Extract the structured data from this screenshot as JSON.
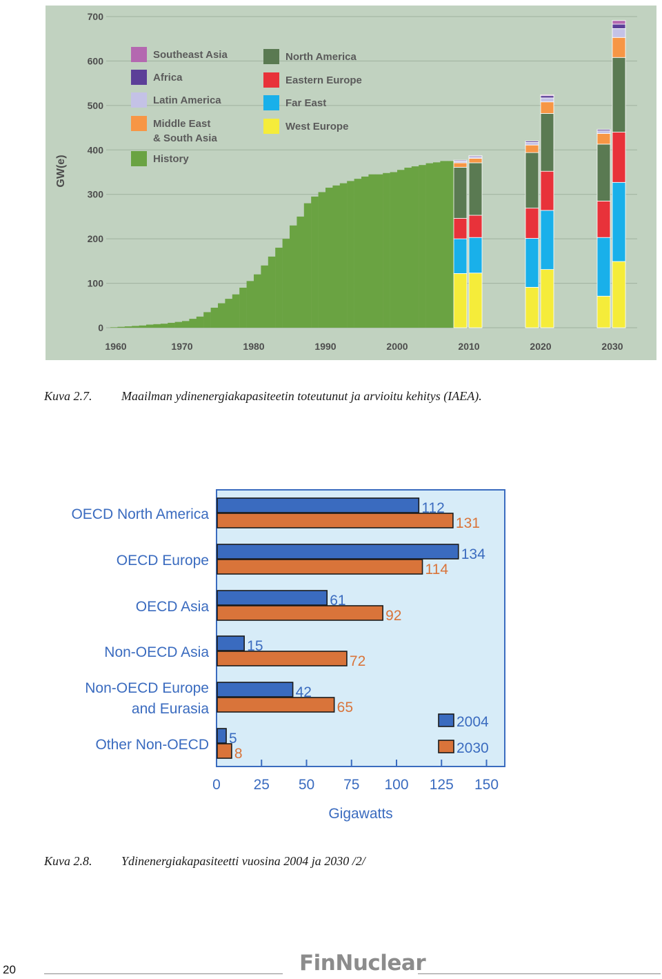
{
  "chart_data": [
    {
      "type": "bar",
      "title": "",
      "ylabel": "GW(e)",
      "xlabel": "",
      "ylim": [
        0,
        700
      ],
      "yticks": [
        0,
        100,
        200,
        300,
        400,
        500,
        600,
        700
      ],
      "xtick_labels": [
        "1960",
        "1970",
        "1980",
        "1990",
        "2000",
        "2010",
        "2020",
        "2030"
      ],
      "legend": [
        {
          "name": "Southeast Asia",
          "color": "#b468b0"
        },
        {
          "name": "Africa",
          "color": "#5c3f98"
        },
        {
          "name": "Latin America",
          "color": "#c4c2e6"
        },
        {
          "name": "Middle East\n& South Asia",
          "color": "#f79645"
        },
        {
          "name": "History",
          "color": "#6aa342"
        },
        {
          "name": "North America",
          "color": "#5a7a52"
        },
        {
          "name": "Eastern Europe",
          "color": "#e8323a"
        },
        {
          "name": "Far East",
          "color": "#19b0ea"
        },
        {
          "name": "West Europe",
          "color": "#f5ec3a"
        }
      ],
      "history": {
        "start_year": 1960,
        "end_year": 2007,
        "values": [
          1,
          2,
          3,
          4,
          5,
          7,
          8,
          9,
          11,
          13,
          15,
          20,
          25,
          35,
          45,
          55,
          65,
          75,
          90,
          105,
          120,
          140,
          160,
          180,
          200,
          230,
          250,
          280,
          295,
          305,
          315,
          320,
          325,
          330,
          335,
          340,
          345,
          345,
          348,
          350,
          355,
          360,
          363,
          366,
          370,
          372,
          375,
          375
        ]
      },
      "projections": [
        {
          "year": 2010,
          "scenario": "low",
          "West Europe": 122,
          "Far East": 78,
          "Eastern Europe": 46,
          "North America": 115,
          "Middle East & South Asia": 10,
          "Latin America": 4,
          "Africa": 2,
          "Southeast Asia": 0
        },
        {
          "year": 2010,
          "scenario": "high",
          "West Europe": 123,
          "Far East": 80,
          "Eastern Europe": 50,
          "North America": 118,
          "Middle East & South Asia": 10,
          "Latin America": 4,
          "Africa": 2,
          "Southeast Asia": 0
        },
        {
          "year": 2020,
          "scenario": "low",
          "West Europe": 91,
          "Far East": 110,
          "Eastern Europe": 68,
          "North America": 125,
          "Middle East & South Asia": 17,
          "Latin America": 6,
          "Africa": 3,
          "Southeast Asia": 0
        },
        {
          "year": 2020,
          "scenario": "high",
          "West Europe": 131,
          "Far East": 133,
          "Eastern Europe": 88,
          "North America": 130,
          "Middle East & South Asia": 26,
          "Latin America": 9,
          "Africa": 5,
          "Southeast Asia": 2
        },
        {
          "year": 2030,
          "scenario": "low",
          "West Europe": 71,
          "Far East": 132,
          "Eastern Europe": 82,
          "North America": 128,
          "Middle East & South Asia": 24,
          "Latin America": 6,
          "Africa": 3,
          "Southeast Asia": 0
        },
        {
          "year": 2030,
          "scenario": "high",
          "West Europe": 149,
          "Far East": 178,
          "Eastern Europe": 113,
          "North America": 168,
          "Middle East & South Asia": 45,
          "Latin America": 20,
          "Africa": 10,
          "Southeast Asia": 8
        }
      ],
      "stack_order": [
        "West Europe",
        "Far East",
        "Eastern Europe",
        "North America",
        "Middle East & South Asia",
        "Latin America",
        "Africa",
        "Southeast Asia"
      ]
    },
    {
      "type": "bar",
      "orientation": "horizontal",
      "title": "",
      "xlabel": "Gigawatts",
      "ylabel": "",
      "xlim": [
        0,
        160
      ],
      "xticks": [
        0,
        25,
        50,
        75,
        100,
        125,
        150
      ],
      "categories": [
        [
          "OECD North America"
        ],
        [
          "OECD Europe"
        ],
        [
          "OECD Asia"
        ],
        [
          "Non-OECD Asia"
        ],
        [
          "Non-OECD Europe",
          "and Eurasia"
        ],
        [
          "Other Non-OECD"
        ]
      ],
      "series": [
        {
          "name": "2004",
          "color": "#3a6bbf",
          "label_color": "#3a6bbf",
          "values": [
            112,
            134,
            61,
            15,
            42,
            5
          ]
        },
        {
          "name": "2030",
          "color": "#d9743a",
          "label_color": "#d9743a",
          "values": [
            131,
            114,
            92,
            72,
            65,
            8
          ]
        }
      ],
      "legend_position": "bottom-right"
    }
  ],
  "captions": {
    "figure1": {
      "number": "Kuva 2.7.",
      "text": "Maailman ydinenergiakapasiteetin toteutunut ja arvioitu kehitys (IAEA)."
    },
    "figure2": {
      "number": "Kuva 2.8.",
      "text": "Ydinenergiakapasiteetti vuosina 2004 ja 2030 /2/"
    }
  },
  "footer": {
    "page_number": "20",
    "logo_text": "FinNuclear"
  }
}
